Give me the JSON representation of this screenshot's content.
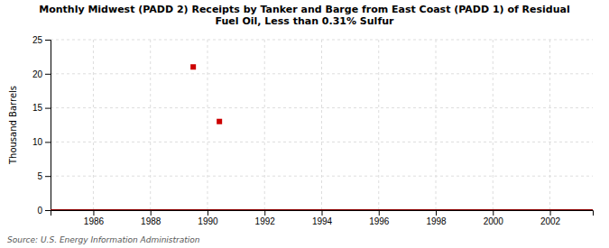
{
  "chart_data": {
    "type": "scatter",
    "title": "Monthly Midwest (PADD 2) Receipts by Tanker and Barge from East Coast (PADD 1) of Residual\nFuel Oil, Less than 0.31% Sulfur",
    "y_label": "Thousand Barrels",
    "annotations": [
      "Source: U.S. Energy Information Administration"
    ],
    "series": [
      {
        "type": "line",
        "color": "#8B0000",
        "x": [
          1984.5,
          2003.5
        ],
        "values": [
          0,
          0
        ]
      },
      {
        "type": "scatter",
        "marker": "square",
        "color": "#CC0000",
        "x": [
          1989.5,
          1990.417
        ],
        "values": [
          21,
          13
        ]
      }
    ],
    "xlim": [
      1984.5,
      2003.5
    ],
    "xticks": [
      1986,
      1988,
      1990,
      1992,
      1994,
      1996,
      1998,
      2000,
      2002
    ],
    "ylim": [
      0,
      25
    ],
    "yticks": [
      0,
      5,
      10,
      15,
      20,
      25
    ],
    "grid": true
  }
}
